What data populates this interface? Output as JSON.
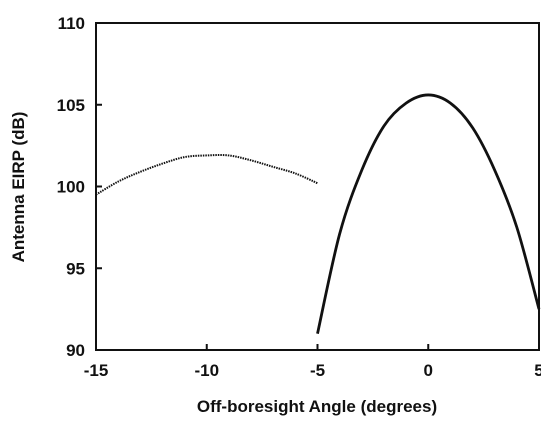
{
  "chart_data": {
    "type": "line",
    "xlabel": "Off-boresight Angle (degrees)",
    "ylabel": "Antenna EIRP (dB)",
    "xlim": [
      -15,
      5
    ],
    "ylim": [
      90,
      110
    ],
    "xticks": [
      -15,
      -10,
      -5,
      0,
      5
    ],
    "yticks": [
      90,
      95,
      100,
      105,
      110
    ],
    "xtick_labels": [
      "-15",
      "-10",
      "-5",
      "0",
      "5"
    ],
    "ytick_labels": [
      "90",
      "95",
      "100",
      "105",
      "110"
    ],
    "grid": false,
    "legend": "none",
    "series": [
      {
        "style": "thin-dotted",
        "color": "#111111",
        "x": [
          -15,
          -14,
          -13,
          -12,
          -11,
          -10,
          -9,
          -8,
          -7,
          -6,
          -5
        ],
        "y": [
          99.5,
          100.3,
          100.9,
          101.4,
          101.8,
          101.9,
          101.9,
          101.6,
          101.2,
          100.8,
          100.2
        ]
      },
      {
        "style": "solid",
        "color": "#111111",
        "x": [
          -5,
          -4,
          -3,
          -2,
          -1,
          0,
          1,
          2,
          3,
          4,
          5
        ],
        "y": [
          91.0,
          97.1,
          101.0,
          103.7,
          105.1,
          105.6,
          105.1,
          103.6,
          101.0,
          97.5,
          92.5
        ]
      }
    ]
  }
}
